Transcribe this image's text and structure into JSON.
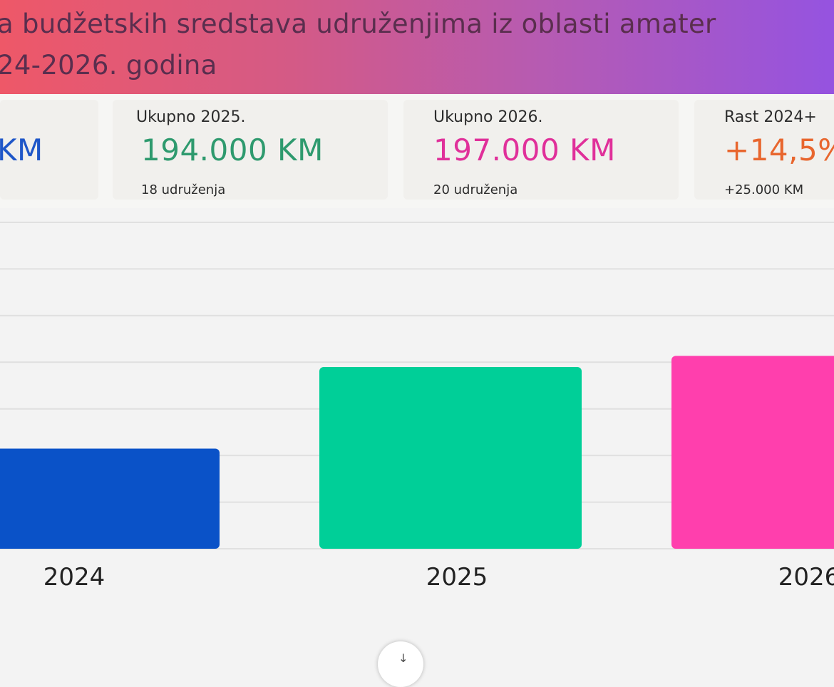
{
  "header": {
    "title_line1": "a budžetskih sredstava udruženjima iz oblasti amater",
    "title_line2": "24-2026. godina"
  },
  "cards": [
    {
      "label": "",
      "value": "KM",
      "sub": "",
      "color": "#1e56c8"
    },
    {
      "label": "Ukupno 2025.",
      "value": "194.000 KM",
      "sub": "18 udruženja",
      "color": "#2e9a6e"
    },
    {
      "label": "Ukupno 2026.",
      "value": "197.000 KM",
      "sub": "20 udruženja",
      "color": "#e0309a"
    },
    {
      "label": "Rast 2024+",
      "value": "+14,5%",
      "sub": "+25.000 KM",
      "color": "#e8662e"
    }
  ],
  "chart_data": {
    "type": "bar",
    "categories": [
      "2024",
      "2025",
      "2026"
    ],
    "values": [
      172000,
      194000,
      197000
    ],
    "colors": [
      "#0a52c8",
      "#00cf98",
      "#ff3fad"
    ],
    "ylim": [
      145000,
      233000
    ],
    "grid": true,
    "xlabel": "",
    "ylabel": ""
  },
  "scroll_button": {
    "icon": "arrow-down-icon",
    "glyph": "↓"
  }
}
